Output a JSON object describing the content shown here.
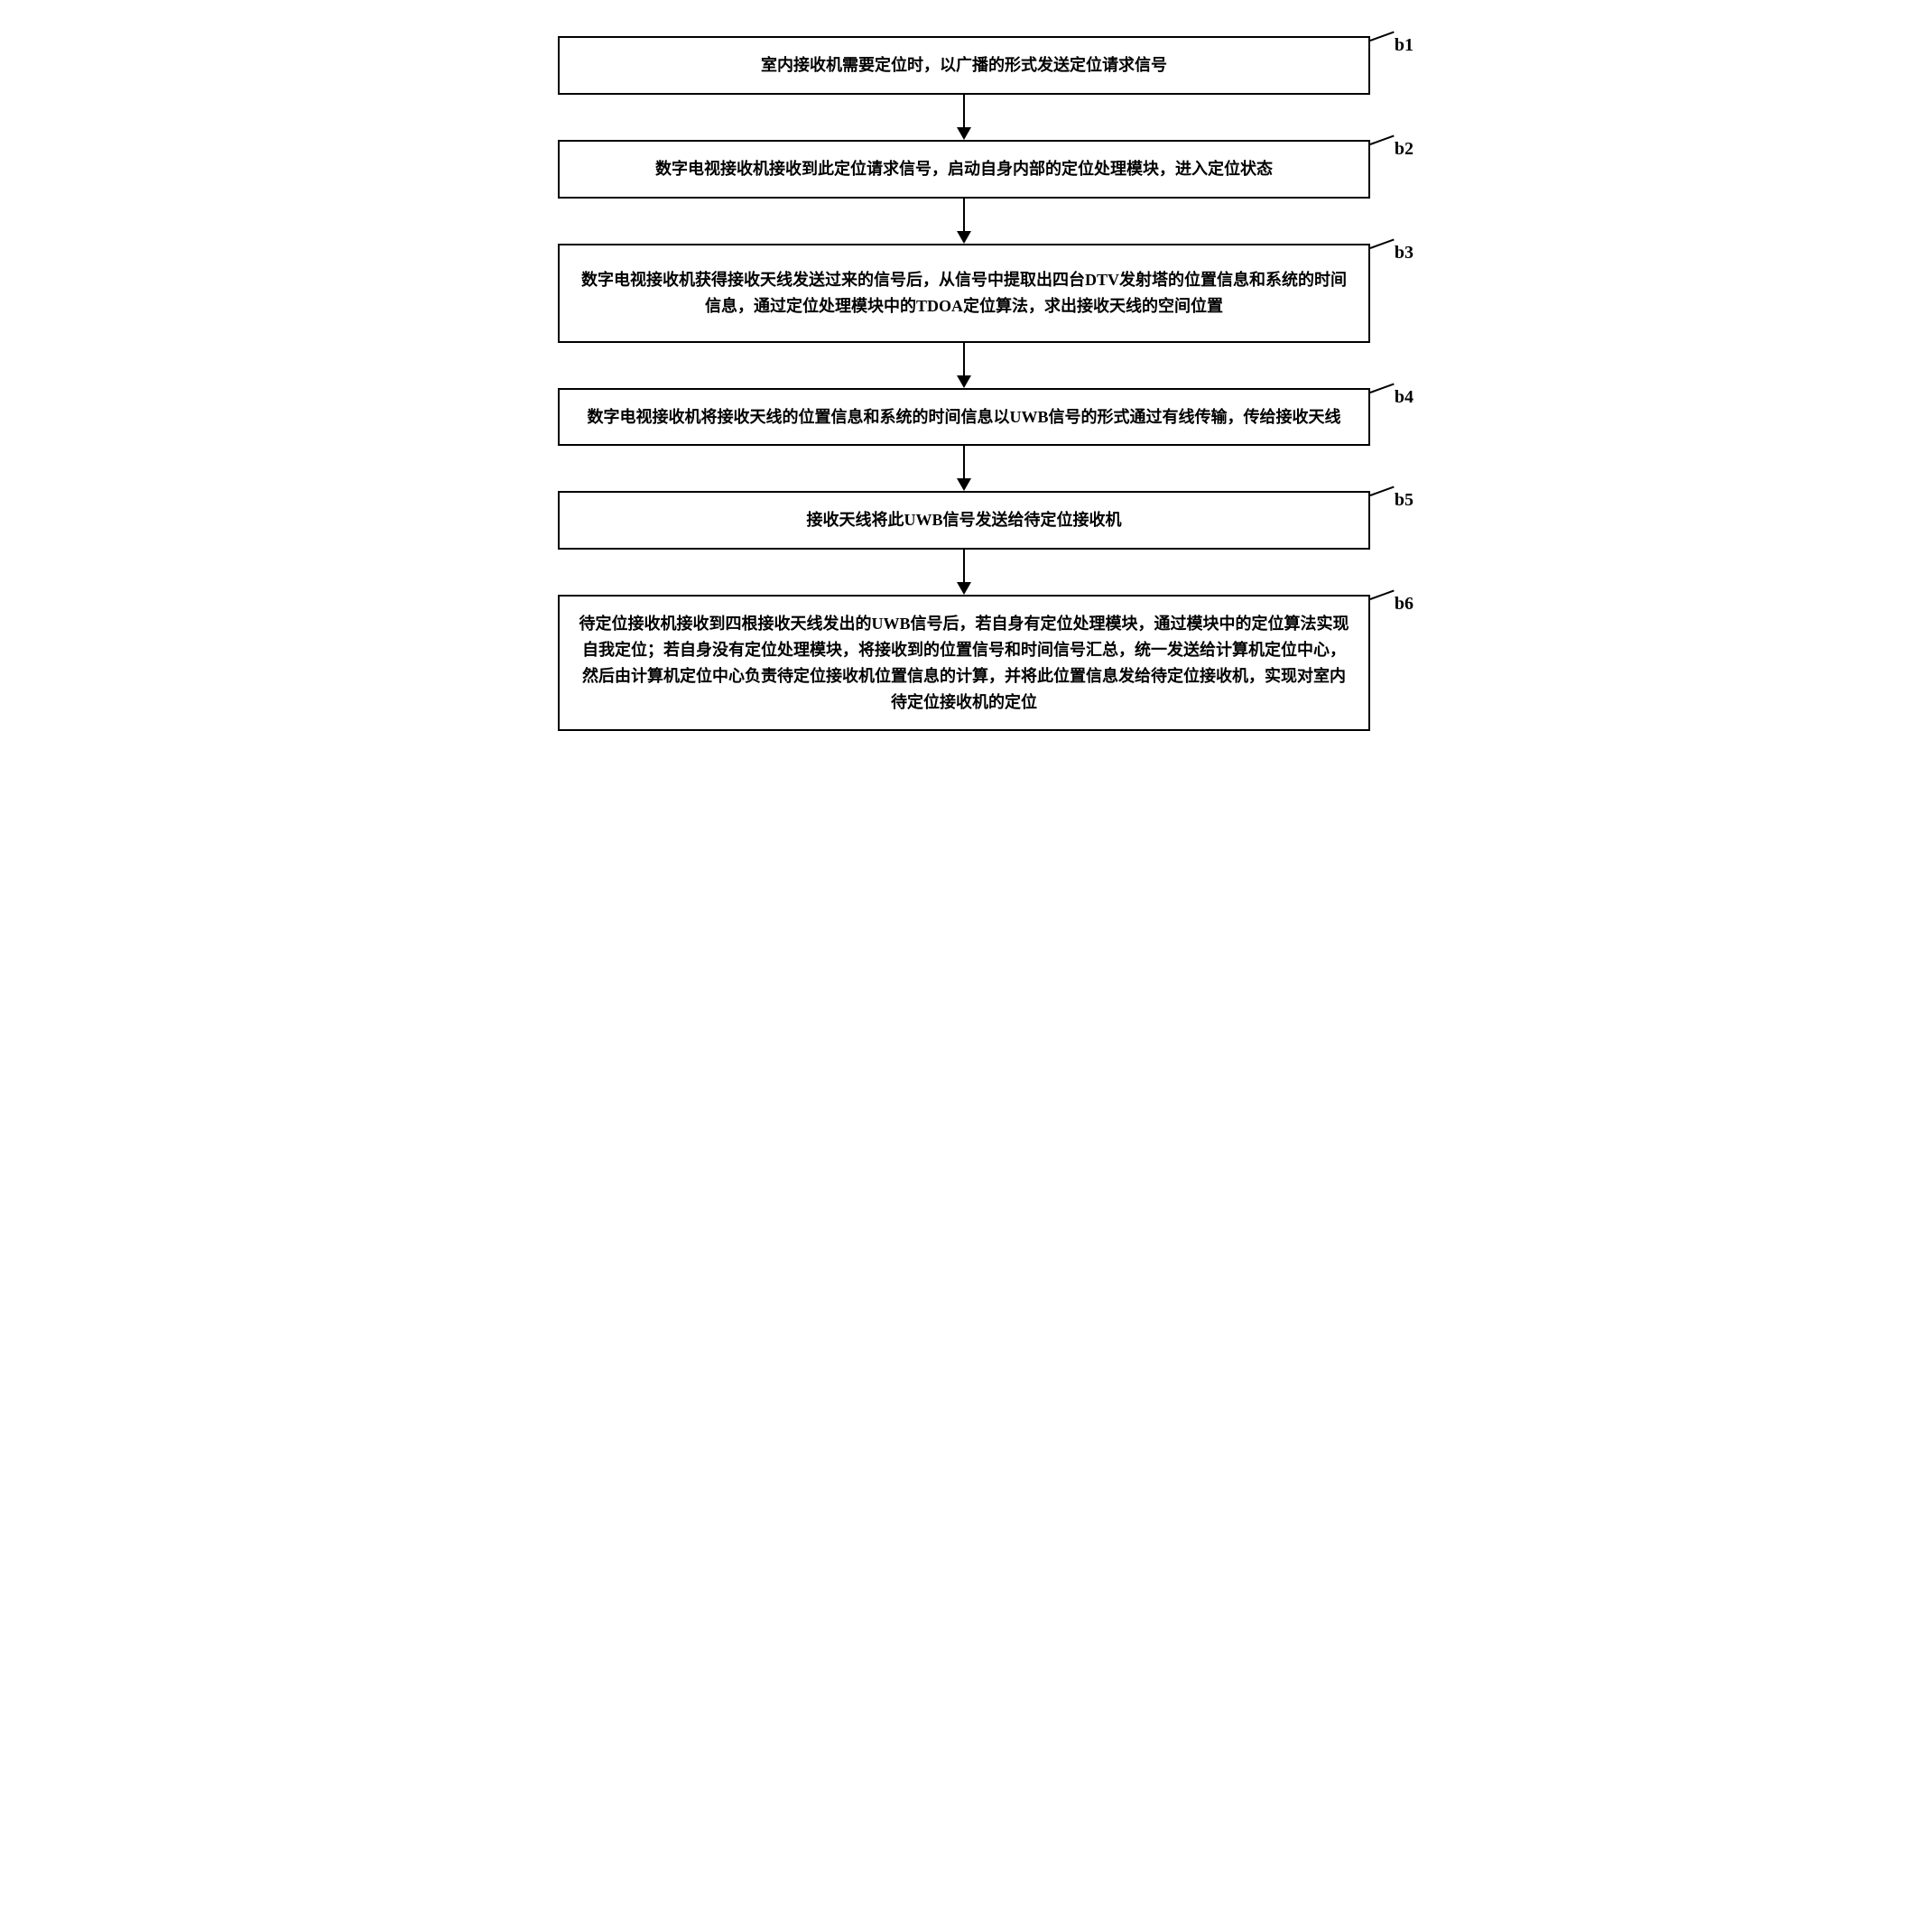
{
  "flowchart": {
    "type": "flowchart",
    "direction": "vertical",
    "background_color": "#ffffff",
    "border_color": "#000000",
    "border_width": 2,
    "arrow_color": "#000000",
    "text_color": "#000000",
    "font_family": "SimSun",
    "font_size": 18,
    "font_weight": "bold",
    "box_padding": 16,
    "arrow_gap": 50,
    "steps": [
      {
        "id": "b1",
        "label": "b1",
        "text": "室内接收机需要定位时，以广播的形式发送定位请求信号"
      },
      {
        "id": "b2",
        "label": "b2",
        "text": "数字电视接收机接收到此定位请求信号，启动自身内部的定位处理模块，进入定位状态"
      },
      {
        "id": "b3",
        "label": "b3",
        "text": "数字电视接收机获得接收天线发送过来的信号后，从信号中提取出四台DTV发射塔的位置信息和系统的时间信息，通过定位处理模块中的TDOA定位算法，求出接收天线的空间位置"
      },
      {
        "id": "b4",
        "label": "b4",
        "text": "数字电视接收机将接收天线的位置信息和系统的时间信息以UWB信号的形式通过有线传输，传给接收天线"
      },
      {
        "id": "b5",
        "label": "b5",
        "text": "接收天线将此UWB信号发送给待定位接收机"
      },
      {
        "id": "b6",
        "label": "b6",
        "text": "待定位接收机接收到四根接收天线发出的UWB信号后，若自身有定位处理模块，通过模块中的定位算法实现自我定位；若自身没有定位处理模块，将接收到的位置信号和时间信号汇总，统一发送给计算机定位中心，然后由计算机定位中心负责待定位接收机位置信息的计算，并将此位置信息发给待定位接收机，实现对室内待定位接收机的定位"
      }
    ],
    "edges": [
      {
        "from": "b1",
        "to": "b2"
      },
      {
        "from": "b2",
        "to": "b3"
      },
      {
        "from": "b3",
        "to": "b4"
      },
      {
        "from": "b4",
        "to": "b5"
      },
      {
        "from": "b5",
        "to": "b6"
      }
    ]
  }
}
